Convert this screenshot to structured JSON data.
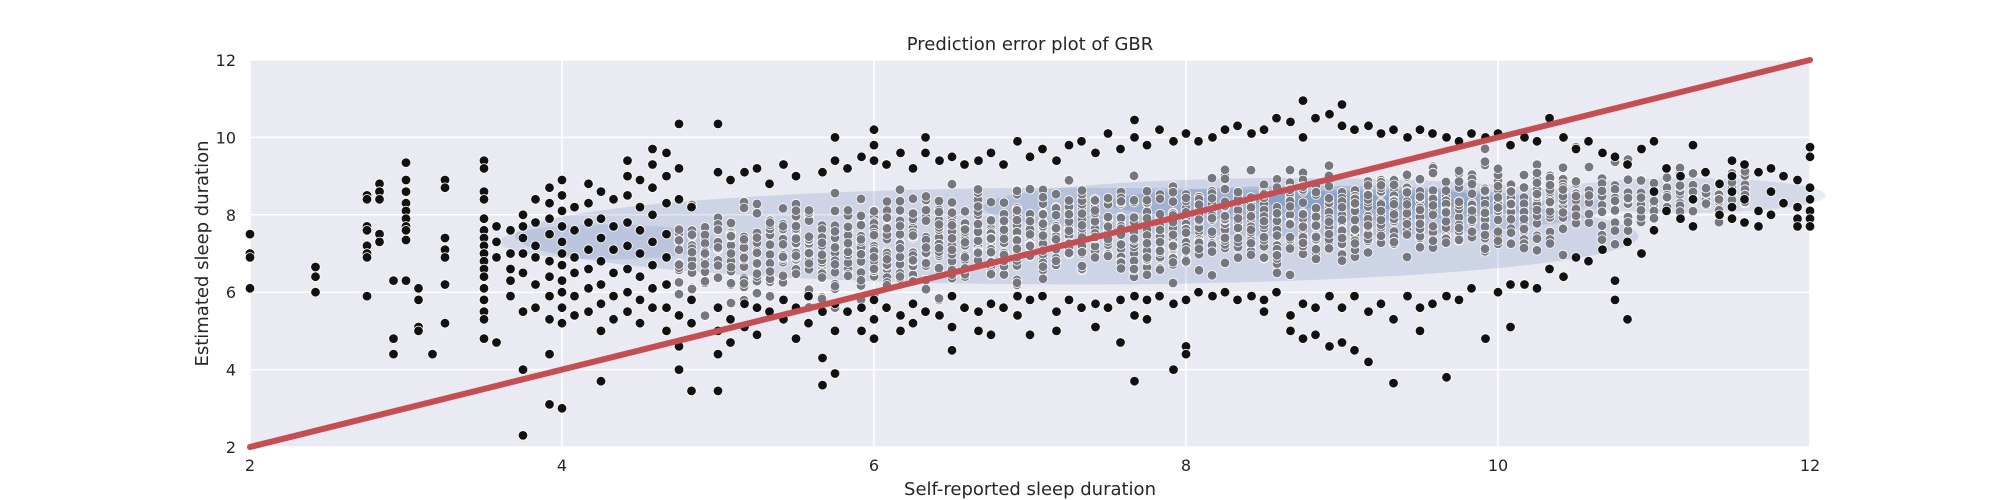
{
  "chart_data": {
    "type": "scatter",
    "title": "Prediction error plot of GBR",
    "xlabel": "Self-reported sleep duration",
    "ylabel": "Estimated sleep duration",
    "xlim": [
      2,
      12
    ],
    "ylim": [
      2,
      12
    ],
    "xticks": [
      2,
      4,
      6,
      8,
      10,
      12
    ],
    "yticks": [
      2,
      4,
      6,
      8,
      10,
      12
    ],
    "grid": true,
    "legend": "none",
    "colors": {
      "background": "#eaeaf2",
      "grid": "#ffffff",
      "points": "#111111",
      "dense_points": "#77777f",
      "identity_line": "#c44e52",
      "density": "#4c72b0"
    },
    "identity_line": {
      "x": [
        2,
        12
      ],
      "y": [
        2,
        12
      ]
    },
    "density_regions": [
      {
        "cx": 7.3,
        "cy": 7.45,
        "rx": 3.6,
        "ry": 1.25,
        "opacity": 0.18
      },
      {
        "cx": 4.3,
        "cy": 7.3,
        "rx": 0.7,
        "ry": 0.45,
        "opacity": 0.14
      },
      {
        "cx": 11.2,
        "cy": 8.5,
        "rx": 0.9,
        "ry": 0.45,
        "opacity": 0.14
      },
      {
        "cx": 8.7,
        "cy": 8.2,
        "rx": 2.0,
        "ry": 0.75,
        "opacity": 0.18
      },
      {
        "cx": 8.9,
        "cy": 8.3,
        "rx": 1.4,
        "ry": 0.45,
        "opacity": 0.22
      },
      {
        "cx": 9.2,
        "cy": 8.4,
        "rx": 0.8,
        "ry": 0.25,
        "opacity": 0.25
      }
    ],
    "points": [
      [
        2.0,
        7.5
      ],
      [
        2.0,
        7.0
      ],
      [
        2.0,
        6.9
      ],
      [
        2.0,
        6.1
      ],
      [
        2.42,
        6.65
      ],
      [
        2.42,
        6.4
      ],
      [
        2.42,
        6.0
      ],
      [
        2.75,
        8.5
      ],
      [
        2.75,
        8.4
      ],
      [
        2.75,
        7.7
      ],
      [
        2.75,
        7.6
      ],
      [
        2.75,
        7.2
      ],
      [
        2.75,
        7.0
      ],
      [
        2.75,
        6.9
      ],
      [
        2.75,
        5.9
      ],
      [
        2.83,
        8.8
      ],
      [
        2.83,
        8.6
      ],
      [
        2.83,
        8.4
      ],
      [
        2.83,
        7.5
      ],
      [
        2.83,
        7.3
      ],
      [
        2.92,
        6.3
      ],
      [
        2.92,
        4.8
      ],
      [
        2.92,
        4.4
      ],
      [
        3.0,
        9.35
      ],
      [
        3.0,
        8.9
      ],
      [
        3.0,
        8.6
      ],
      [
        3.0,
        8.3
      ],
      [
        3.0,
        8.1
      ],
      [
        3.0,
        7.9
      ],
      [
        3.0,
        7.7
      ],
      [
        3.0,
        7.6
      ],
      [
        3.0,
        7.35
      ],
      [
        3.0,
        6.3
      ],
      [
        3.08,
        6.1
      ],
      [
        3.08,
        5.8
      ],
      [
        3.08,
        5.1
      ],
      [
        3.08,
        5.0
      ],
      [
        3.17,
        4.4
      ],
      [
        3.25,
        8.9
      ],
      [
        3.25,
        8.7
      ],
      [
        3.25,
        7.4
      ],
      [
        3.25,
        7.1
      ],
      [
        3.25,
        6.9
      ],
      [
        3.25,
        6.2
      ],
      [
        3.25,
        5.2
      ],
      [
        3.5,
        9.4
      ],
      [
        3.5,
        9.2
      ],
      [
        3.5,
        8.6
      ],
      [
        3.5,
        8.4
      ],
      [
        3.5,
        7.9
      ],
      [
        3.5,
        7.6
      ],
      [
        3.5,
        7.4
      ],
      [
        3.5,
        7.2
      ],
      [
        3.5,
        7.0
      ],
      [
        3.5,
        6.8
      ],
      [
        3.5,
        6.6
      ],
      [
        3.5,
        6.4
      ],
      [
        3.5,
        6.1
      ],
      [
        3.5,
        5.8
      ],
      [
        3.5,
        5.5
      ],
      [
        3.5,
        5.3
      ],
      [
        3.5,
        4.8
      ],
      [
        3.58,
        7.7
      ],
      [
        3.58,
        7.3
      ],
      [
        3.58,
        6.9
      ],
      [
        3.58,
        4.7
      ],
      [
        3.67,
        7.6
      ],
      [
        3.67,
        7.0
      ],
      [
        3.67,
        6.6
      ],
      [
        3.67,
        6.3
      ],
      [
        3.67,
        5.9
      ],
      [
        3.75,
        8.0
      ],
      [
        3.75,
        7.7
      ],
      [
        3.75,
        7.4
      ],
      [
        3.75,
        7.0
      ],
      [
        3.75,
        6.5
      ],
      [
        3.75,
        5.5
      ],
      [
        3.75,
        4.0
      ],
      [
        3.75,
        2.3
      ],
      [
        3.83,
        8.4
      ],
      [
        3.83,
        7.8
      ],
      [
        3.83,
        7.2
      ],
      [
        3.83,
        6.9
      ],
      [
        3.83,
        6.2
      ],
      [
        3.83,
        5.6
      ],
      [
        3.92,
        8.7
      ],
      [
        3.92,
        8.3
      ],
      [
        3.92,
        7.9
      ],
      [
        3.92,
        7.5
      ],
      [
        3.92,
        6.8
      ],
      [
        3.92,
        6.4
      ],
      [
        3.92,
        5.9
      ],
      [
        3.92,
        5.3
      ],
      [
        3.92,
        4.4
      ],
      [
        3.92,
        3.1
      ],
      [
        4.0,
        8.9
      ],
      [
        4.0,
        8.5
      ],
      [
        4.0,
        8.1
      ],
      [
        4.0,
        7.7
      ],
      [
        4.0,
        7.3
      ],
      [
        4.0,
        7.0
      ],
      [
        4.0,
        6.7
      ],
      [
        4.0,
        6.3
      ],
      [
        4.0,
        6.0
      ],
      [
        4.0,
        5.6
      ],
      [
        4.0,
        5.2
      ],
      [
        4.0,
        3.0
      ],
      [
        4.08,
        8.2
      ],
      [
        4.08,
        7.6
      ],
      [
        4.08,
        6.9
      ],
      [
        4.08,
        6.5
      ],
      [
        4.08,
        5.9
      ],
      [
        4.08,
        5.4
      ],
      [
        4.17,
        8.8
      ],
      [
        4.17,
        8.3
      ],
      [
        4.17,
        7.8
      ],
      [
        4.17,
        7.1
      ],
      [
        4.17,
        6.6
      ],
      [
        4.17,
        6.1
      ],
      [
        4.17,
        5.5
      ],
      [
        4.25,
        8.6
      ],
      [
        4.25,
        7.9
      ],
      [
        4.25,
        7.4
      ],
      [
        4.25,
        6.8
      ],
      [
        4.25,
        6.2
      ],
      [
        4.25,
        5.7
      ],
      [
        4.25,
        5.0
      ],
      [
        4.25,
        3.7
      ],
      [
        4.33,
        8.4
      ],
      [
        4.33,
        7.7
      ],
      [
        4.33,
        7.1
      ],
      [
        4.33,
        6.5
      ],
      [
        4.33,
        5.9
      ],
      [
        4.33,
        5.3
      ],
      [
        4.42,
        9.4
      ],
      [
        4.42,
        9.0
      ],
      [
        4.42,
        8.5
      ],
      [
        4.42,
        7.8
      ],
      [
        4.42,
        7.2
      ],
      [
        4.42,
        6.6
      ],
      [
        4.42,
        6.0
      ],
      [
        4.42,
        5.5
      ],
      [
        4.5,
        8.9
      ],
      [
        4.5,
        8.2
      ],
      [
        4.5,
        7.6
      ],
      [
        4.5,
        7.0
      ],
      [
        4.5,
        6.4
      ],
      [
        4.5,
        5.8
      ],
      [
        4.5,
        5.2
      ],
      [
        4.58,
        9.7
      ],
      [
        4.58,
        9.3
      ],
      [
        4.58,
        8.7
      ],
      [
        4.58,
        8.0
      ],
      [
        4.58,
        7.3
      ],
      [
        4.58,
        6.7
      ],
      [
        4.58,
        6.1
      ],
      [
        4.58,
        5.6
      ],
      [
        4.67,
        9.6
      ],
      [
        4.67,
        9.0
      ],
      [
        4.67,
        8.3
      ],
      [
        4.67,
        7.5
      ],
      [
        4.67,
        6.9
      ],
      [
        4.67,
        6.2
      ],
      [
        4.67,
        5.6
      ],
      [
        4.67,
        5.0
      ],
      [
        4.75,
        10.35
      ],
      [
        4.75,
        9.2
      ],
      [
        4.75,
        8.4
      ],
      [
        4.75,
        5.4
      ],
      [
        4.75,
        4.6
      ],
      [
        4.75,
        4.0
      ],
      [
        4.83,
        8.2
      ],
      [
        4.83,
        5.8
      ],
      [
        4.83,
        5.2
      ],
      [
        4.83,
        3.45
      ],
      [
        5.0,
        10.35
      ],
      [
        5.0,
        9.1
      ],
      [
        5.0,
        5.6
      ],
      [
        5.0,
        5.0
      ],
      [
        5.0,
        4.4
      ],
      [
        5.0,
        3.45
      ],
      [
        5.08,
        8.9
      ],
      [
        5.08,
        5.3
      ],
      [
        5.08,
        4.7
      ],
      [
        5.17,
        9.1
      ],
      [
        5.17,
        5.7
      ],
      [
        5.17,
        5.1
      ],
      [
        5.25,
        9.2
      ],
      [
        5.25,
        5.6
      ],
      [
        5.25,
        4.9
      ],
      [
        5.33,
        8.8
      ],
      [
        5.33,
        5.5
      ],
      [
        5.42,
        9.3
      ],
      [
        5.42,
        5.8
      ],
      [
        5.42,
        5.3
      ],
      [
        5.5,
        9.0
      ],
      [
        5.5,
        5.6
      ],
      [
        5.5,
        4.8
      ],
      [
        5.58,
        5.9
      ],
      [
        5.58,
        5.2
      ],
      [
        5.67,
        9.1
      ],
      [
        5.67,
        5.5
      ],
      [
        5.67,
        4.3
      ],
      [
        5.67,
        3.6
      ],
      [
        5.75,
        10.0
      ],
      [
        5.75,
        9.4
      ],
      [
        5.75,
        5.7
      ],
      [
        5.75,
        5.0
      ],
      [
        5.75,
        3.9
      ],
      [
        5.83,
        9.2
      ],
      [
        5.83,
        5.5
      ],
      [
        5.92,
        9.5
      ],
      [
        5.92,
        5.6
      ],
      [
        5.92,
        5.0
      ],
      [
        6.0,
        10.2
      ],
      [
        6.0,
        9.8
      ],
      [
        6.0,
        9.4
      ],
      [
        6.0,
        5.8
      ],
      [
        6.0,
        5.3
      ],
      [
        6.0,
        4.8
      ],
      [
        6.08,
        9.3
      ],
      [
        6.08,
        5.6
      ],
      [
        6.17,
        9.6
      ],
      [
        6.17,
        5.4
      ],
      [
        6.17,
        5.0
      ],
      [
        6.25,
        9.2
      ],
      [
        6.25,
        5.7
      ],
      [
        6.25,
        5.2
      ],
      [
        6.33,
        10.0
      ],
      [
        6.33,
        9.6
      ],
      [
        6.33,
        5.5
      ],
      [
        6.42,
        9.4
      ],
      [
        6.42,
        5.4
      ],
      [
        6.5,
        9.5
      ],
      [
        6.5,
        5.9
      ],
      [
        6.5,
        5.1
      ],
      [
        6.5,
        4.5
      ],
      [
        6.58,
        9.3
      ],
      [
        6.58,
        5.6
      ],
      [
        6.67,
        9.4
      ],
      [
        6.67,
        5.5
      ],
      [
        6.67,
        5.0
      ],
      [
        6.75,
        9.6
      ],
      [
        6.75,
        5.7
      ],
      [
        6.75,
        4.9
      ],
      [
        6.83,
        9.3
      ],
      [
        6.83,
        5.6
      ],
      [
        6.92,
        9.9
      ],
      [
        6.92,
        5.9
      ],
      [
        6.92,
        5.4
      ],
      [
        7.0,
        9.5
      ],
      [
        7.0,
        5.8
      ],
      [
        7.0,
        4.9
      ],
      [
        7.08,
        9.7
      ],
      [
        7.08,
        5.9
      ],
      [
        7.17,
        9.4
      ],
      [
        7.17,
        5.5
      ],
      [
        7.17,
        5.0
      ],
      [
        7.25,
        9.8
      ],
      [
        7.25,
        5.8
      ],
      [
        7.33,
        9.9
      ],
      [
        7.33,
        5.6
      ],
      [
        7.42,
        9.6
      ],
      [
        7.42,
        5.7
      ],
      [
        7.42,
        5.1
      ],
      [
        7.5,
        10.1
      ],
      [
        7.5,
        5.6
      ],
      [
        7.58,
        9.7
      ],
      [
        7.58,
        5.8
      ],
      [
        7.58,
        4.7
      ],
      [
        7.67,
        10.45
      ],
      [
        7.67,
        10.0
      ],
      [
        7.67,
        5.9
      ],
      [
        7.67,
        5.4
      ],
      [
        7.67,
        3.7
      ],
      [
        7.75,
        9.8
      ],
      [
        7.75,
        5.8
      ],
      [
        7.75,
        5.3
      ],
      [
        7.83,
        10.2
      ],
      [
        7.83,
        5.9
      ],
      [
        7.92,
        9.9
      ],
      [
        7.92,
        5.7
      ],
      [
        7.92,
        4.0
      ],
      [
        8.0,
        10.1
      ],
      [
        8.0,
        5.8
      ],
      [
        8.0,
        4.6
      ],
      [
        8.0,
        4.4
      ],
      [
        8.08,
        9.9
      ],
      [
        8.08,
        6.0
      ],
      [
        8.17,
        10.0
      ],
      [
        8.17,
        5.9
      ],
      [
        8.25,
        10.2
      ],
      [
        8.25,
        6.0
      ],
      [
        8.33,
        10.3
      ],
      [
        8.33,
        5.8
      ],
      [
        8.42,
        10.1
      ],
      [
        8.42,
        5.9
      ],
      [
        8.5,
        10.2
      ],
      [
        8.5,
        5.8
      ],
      [
        8.5,
        5.5
      ],
      [
        8.58,
        10.5
      ],
      [
        8.58,
        6.0
      ],
      [
        8.67,
        10.4
      ],
      [
        8.67,
        5.4
      ],
      [
        8.67,
        5.0
      ],
      [
        8.75,
        10.95
      ],
      [
        8.75,
        10.0
      ],
      [
        8.75,
        5.7
      ],
      [
        8.75,
        4.8
      ],
      [
        8.83,
        10.5
      ],
      [
        8.83,
        5.6
      ],
      [
        8.83,
        4.9
      ],
      [
        8.92,
        10.6
      ],
      [
        8.92,
        5.9
      ],
      [
        8.92,
        4.6
      ],
      [
        9.0,
        10.85
      ],
      [
        9.0,
        10.3
      ],
      [
        9.0,
        5.6
      ],
      [
        9.0,
        4.7
      ],
      [
        9.08,
        10.2
      ],
      [
        9.08,
        5.9
      ],
      [
        9.08,
        4.5
      ],
      [
        9.17,
        10.3
      ],
      [
        9.17,
        5.5
      ],
      [
        9.17,
        4.2
      ],
      [
        9.25,
        10.1
      ],
      [
        9.25,
        5.7
      ],
      [
        9.33,
        10.2
      ],
      [
        9.33,
        5.3
      ],
      [
        9.33,
        3.65
      ],
      [
        9.42,
        10.0
      ],
      [
        9.42,
        5.9
      ],
      [
        9.5,
        10.2
      ],
      [
        9.5,
        5.6
      ],
      [
        9.5,
        5.0
      ],
      [
        9.58,
        10.1
      ],
      [
        9.58,
        5.7
      ],
      [
        9.67,
        10.0
      ],
      [
        9.67,
        5.9
      ],
      [
        9.67,
        3.8
      ],
      [
        9.75,
        9.9
      ],
      [
        9.75,
        5.8
      ],
      [
        9.83,
        10.1
      ],
      [
        9.83,
        6.1
      ],
      [
        9.92,
        10.0
      ],
      [
        9.92,
        4.8
      ],
      [
        10.0,
        10.1
      ],
      [
        10.0,
        6.0
      ],
      [
        10.08,
        9.8
      ],
      [
        10.08,
        6.2
      ],
      [
        10.08,
        5.1
      ],
      [
        10.17,
        10.0
      ],
      [
        10.17,
        6.2
      ],
      [
        10.25,
        9.9
      ],
      [
        10.25,
        6.1
      ],
      [
        10.33,
        10.5
      ],
      [
        10.33,
        6.6
      ],
      [
        10.42,
        10.0
      ],
      [
        10.42,
        6.4
      ],
      [
        10.5,
        9.7
      ],
      [
        10.5,
        6.9
      ],
      [
        10.58,
        9.9
      ],
      [
        10.58,
        6.8
      ],
      [
        10.67,
        9.6
      ],
      [
        10.67,
        7.1
      ],
      [
        10.75,
        9.5
      ],
      [
        10.75,
        6.3
      ],
      [
        10.75,
        5.8
      ],
      [
        10.83,
        9.3
      ],
      [
        10.83,
        7.3
      ],
      [
        10.83,
        5.3
      ],
      [
        10.92,
        9.7
      ],
      [
        10.92,
        7.0
      ],
      [
        11.0,
        9.9
      ],
      [
        11.0,
        8.6
      ],
      [
        11.0,
        7.6
      ],
      [
        11.08,
        9.2
      ],
      [
        11.08,
        8.1
      ],
      [
        11.17,
        9.0
      ],
      [
        11.17,
        7.9
      ],
      [
        11.25,
        9.8
      ],
      [
        11.25,
        8.4
      ],
      [
        11.25,
        7.7
      ],
      [
        11.33,
        9.1
      ],
      [
        11.42,
        8.8
      ],
      [
        11.42,
        8.0
      ],
      [
        11.5,
        9.4
      ],
      [
        11.5,
        9.0
      ],
      [
        11.5,
        8.6
      ],
      [
        11.5,
        8.2
      ],
      [
        11.5,
        7.9
      ],
      [
        11.58,
        9.3
      ],
      [
        11.58,
        8.4
      ],
      [
        11.58,
        7.8
      ],
      [
        11.67,
        9.1
      ],
      [
        11.67,
        8.1
      ],
      [
        11.67,
        7.7
      ],
      [
        11.75,
        9.2
      ],
      [
        11.75,
        8.6
      ],
      [
        11.75,
        8.0
      ],
      [
        11.83,
        9.0
      ],
      [
        11.83,
        8.3
      ],
      [
        11.92,
        8.9
      ],
      [
        11.92,
        8.2
      ],
      [
        11.92,
        7.9
      ],
      [
        11.92,
        7.7
      ],
      [
        12.0,
        9.75
      ],
      [
        12.0,
        9.5
      ],
      [
        12.0,
        8.7
      ],
      [
        12.0,
        8.4
      ],
      [
        12.0,
        8.1
      ],
      [
        12.0,
        7.9
      ],
      [
        12.0,
        7.7
      ]
    ]
  }
}
